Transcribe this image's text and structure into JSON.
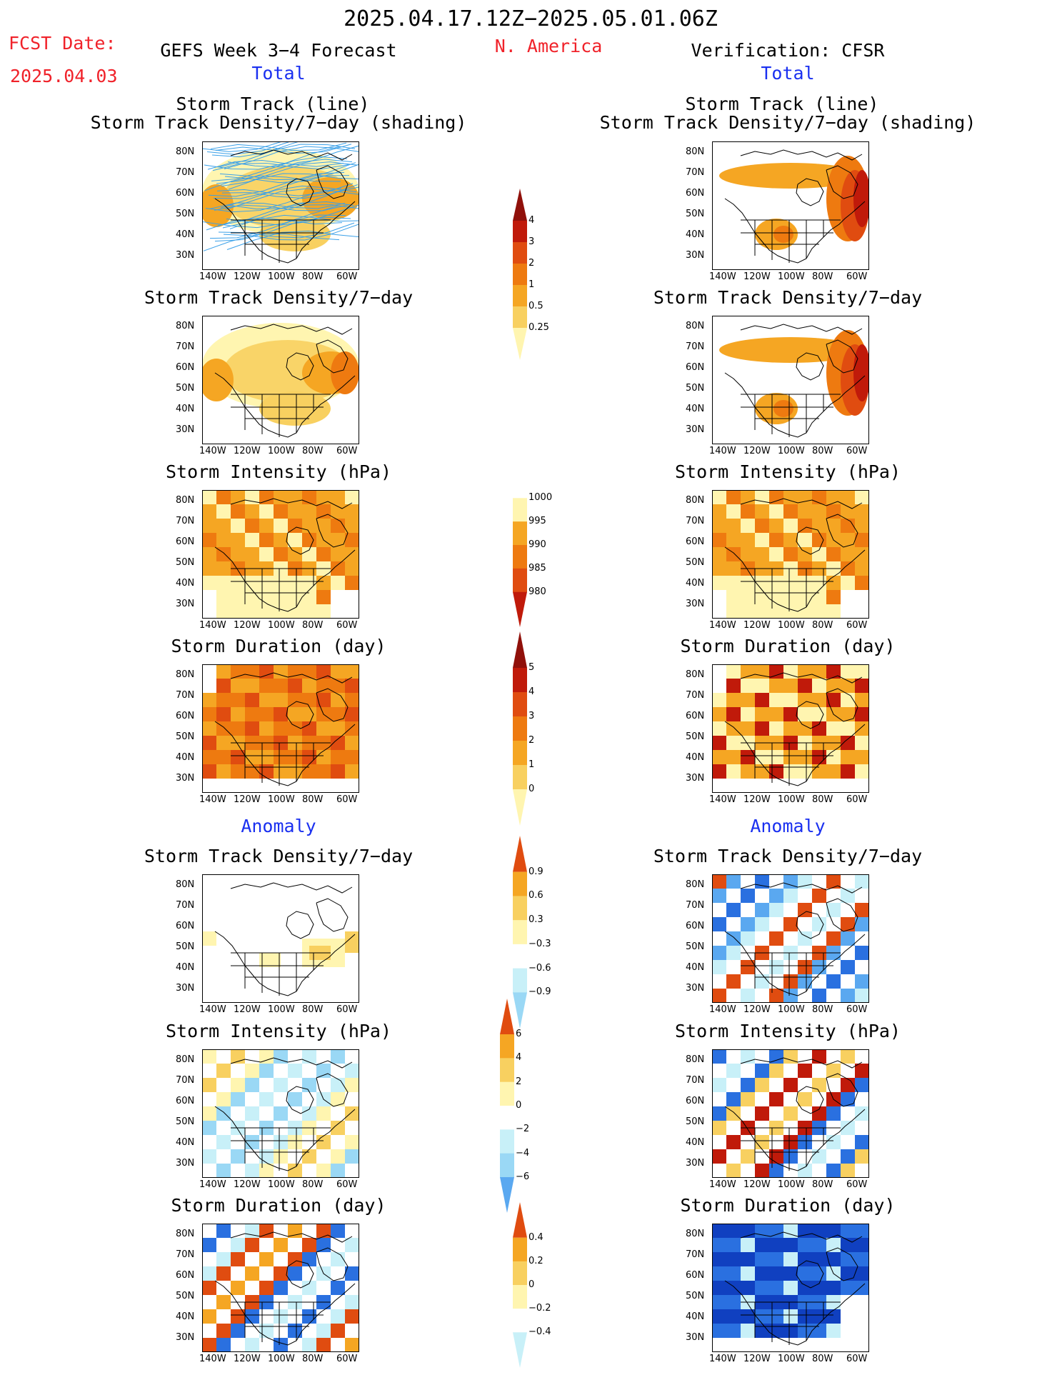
{
  "header": {
    "period": "2025.04.17.12Z−2025.05.01.06Z",
    "fcst_label": "FCST Date:",
    "fcst_date": "2025.04.03",
    "forecast_title": "GEFS Week 3−4 Forecast",
    "region": "N. America",
    "verification": "Verification: CFSR"
  },
  "sections": {
    "total_left": "Total",
    "total_right": "Total",
    "anomaly_left": "Anomaly",
    "anomaly_right": "Anomaly"
  },
  "panel_titles": {
    "track_line": "Storm Track (line)",
    "track_shading": "Storm Track Density/7−day (shading)",
    "density": "Storm Track Density/7−day",
    "intensity": "Storm Intensity (hPa)",
    "duration": "Storm Duration (day)"
  },
  "axes": {
    "lat_ticks": [
      "80N",
      "70N",
      "60N",
      "50N",
      "40N",
      "30N"
    ],
    "lon_ticks": [
      "140W",
      "120W",
      "100W",
      "80W",
      "60W"
    ]
  },
  "colorbars": {
    "density_total": [
      "4",
      "3",
      "2",
      "1",
      "0.5",
      "0.25"
    ],
    "intensity_total": [
      "1000",
      "995",
      "990",
      "985",
      "980"
    ],
    "duration_total": [
      "5",
      "4",
      "3",
      "2",
      "1",
      "0"
    ],
    "density_anom": [
      "0.9",
      "0.6",
      "0.3",
      "−0.3",
      "−0.6",
      "−0.9"
    ],
    "intensity_anom": [
      "6",
      "4",
      "2",
      "0",
      "−2",
      "−4",
      "−6"
    ],
    "duration_anom": [
      "0.4",
      "0.2",
      "0",
      "−0.2",
      "−0.4"
    ]
  },
  "colors": {
    "title_red": "#f0222a",
    "title_blue": "#1a30f0",
    "track_line": "#3aa0e8",
    "warm": [
      "#fff5b0",
      "#f8d060",
      "#f5a623",
      "#ee7a10",
      "#e04c10",
      "#c01a0a",
      "#90100a"
    ],
    "cool": [
      "#c8f0f8",
      "#9ad8f5",
      "#5aa8f0",
      "#2a70e0",
      "#1040c0"
    ]
  },
  "map_fields": {
    "L1": {
      "style": "track",
      "fill": [
        "#fff5b0",
        "#f8d060",
        "#f5a623"
      ]
    },
    "R1": {
      "style": "total-high",
      "fill": [
        "#f5a623",
        "#ee7a10",
        "#e04c10",
        "#c01a0a"
      ]
    },
    "L2": {
      "style": "total",
      "fill": [
        "#fff5b0",
        "#f8d060",
        "#f5a623",
        "#ee7a10"
      ]
    },
    "R2": {
      "style": "total-high",
      "fill": [
        "#f5a623",
        "#ee7a10",
        "#e04c10",
        "#c01a0a"
      ]
    },
    "L3": {
      "style": "intensity",
      "fill": [
        "#fff5b0",
        "#f5a623",
        "#ee7a10"
      ]
    },
    "R3": {
      "style": "intensity",
      "fill": [
        "#fff5b0",
        "#f5a623",
        "#ee7a10"
      ]
    },
    "L4": {
      "style": "duration",
      "fill": [
        "#f5a623",
        "#ee7a10",
        "#e04c10"
      ]
    },
    "R4": {
      "style": "duration",
      "fill": [
        "#fff5b0",
        "#f5a623",
        "#c01a0a"
      ]
    },
    "L5": {
      "style": "anom-weak",
      "fill": [
        "#fff5b0",
        "#f8d060"
      ]
    },
    "R5": {
      "style": "anom-mixed",
      "fill": [
        "#e04c10",
        "#5aa8f0",
        "#c8f0f8",
        "#2a70e0"
      ]
    },
    "L6": {
      "style": "anom-mixed",
      "fill": [
        "#c8f0f8",
        "#fff5b0",
        "#9ad8f5",
        "#f8d060"
      ]
    },
    "R6": {
      "style": "anom-mixed",
      "fill": [
        "#c01a0a",
        "#2a70e0",
        "#f8d060",
        "#c8f0f8"
      ]
    },
    "L7": {
      "style": "anom-mixed",
      "fill": [
        "#c8f0f8",
        "#e04c10",
        "#2a70e0",
        "#f5a623"
      ]
    },
    "R7": {
      "style": "anom-cool",
      "fill": [
        "#1040c0",
        "#2a70e0",
        "#c8f0f8"
      ]
    }
  }
}
